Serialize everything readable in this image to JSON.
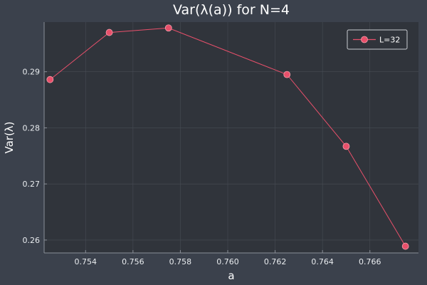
{
  "chart_data": {
    "type": "line",
    "title": "Var(λ(a)) for N=4",
    "xlabel": "a",
    "ylabel": "Var(λ)",
    "xlim": [
      0.75225,
      0.76805
    ],
    "ylim": [
      0.2577,
      0.29885
    ],
    "xticks": [
      0.754,
      0.756,
      0.758,
      0.76,
      0.762,
      0.764,
      0.766
    ],
    "xtick_labels": [
      "0.754",
      "0.756",
      "0.758",
      "0.760",
      "0.762",
      "0.764",
      "0.766"
    ],
    "yticks": [
      0.26,
      0.27,
      0.28,
      0.29
    ],
    "ytick_labels": [
      "0.26",
      "0.27",
      "0.28",
      "0.29"
    ],
    "grid": true,
    "legend_position": "top-right",
    "series": [
      {
        "name": "L=32",
        "color": "#e8506b",
        "x": [
          0.7525,
          0.755,
          0.7575,
          0.7625,
          0.765,
          0.7675
        ],
        "y": [
          0.2886,
          0.297,
          0.2978,
          0.2895,
          0.2767,
          0.2589
        ]
      }
    ]
  },
  "colors": {
    "background": "#3b414c",
    "plot_background": "#30343b",
    "grid": "#474c54",
    "axis": "#8a8f98",
    "series": "#e8506b",
    "text": "#ffffff"
  }
}
